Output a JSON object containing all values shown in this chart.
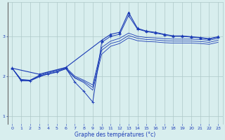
{
  "xlabel": "Graphe des températures (°c)",
  "bg_color": "#d8eeee",
  "line_color": "#1a3ab5",
  "grid_color": "#aec8c8",
  "xlim": [
    -0.5,
    23.5
  ],
  "ylim": [
    0.8,
    3.85
  ],
  "yticks": [
    1,
    2,
    3
  ],
  "xticks": [
    0,
    1,
    2,
    3,
    4,
    5,
    6,
    7,
    8,
    9,
    10,
    11,
    12,
    13,
    14,
    15,
    16,
    17,
    18,
    19,
    20,
    21,
    22,
    23
  ],
  "lines_plain": [
    [
      2.2,
      1.92,
      1.9,
      2.02,
      2.1,
      2.15,
      2.22,
      2.0,
      1.9,
      1.78,
      2.72,
      2.88,
      2.95,
      3.08,
      3.0,
      2.97,
      2.96,
      2.94,
      2.93,
      2.93,
      2.93,
      2.92,
      2.9,
      2.95
    ],
    [
      2.2,
      1.9,
      1.9,
      2.0,
      2.08,
      2.13,
      2.2,
      1.97,
      1.87,
      1.72,
      2.65,
      2.82,
      2.88,
      3.02,
      2.95,
      2.92,
      2.91,
      2.89,
      2.88,
      2.88,
      2.88,
      2.87,
      2.85,
      2.9
    ],
    [
      2.2,
      1.88,
      1.88,
      1.98,
      2.06,
      2.11,
      2.18,
      1.95,
      1.84,
      1.65,
      2.55,
      2.75,
      2.82,
      2.96,
      2.89,
      2.87,
      2.86,
      2.84,
      2.83,
      2.83,
      2.83,
      2.82,
      2.8,
      2.85
    ]
  ],
  "line_spike": {
    "x": [
      0,
      1,
      2,
      3,
      4,
      5,
      6,
      7,
      8,
      9,
      10,
      11,
      12,
      13,
      14,
      15,
      16,
      17,
      18,
      19,
      20,
      21,
      22,
      23
    ],
    "y": [
      2.2,
      1.9,
      1.88,
      2.0,
      2.05,
      2.1,
      2.2,
      1.85,
      1.62,
      1.35,
      2.85,
      3.0,
      3.05,
      3.52,
      3.18,
      3.12,
      3.08,
      3.04,
      3.0,
      3.0,
      2.98,
      2.96,
      2.93,
      2.98
    ]
  },
  "line_top": {
    "x": [
      0,
      3,
      6,
      10,
      11,
      12,
      13,
      14,
      15,
      16,
      17,
      18,
      19,
      20,
      21,
      22,
      23
    ],
    "y": [
      2.2,
      2.05,
      2.22,
      2.9,
      3.05,
      3.1,
      3.6,
      3.2,
      3.13,
      3.1,
      3.05,
      3.01,
      3.01,
      2.99,
      2.97,
      2.94,
      2.99
    ]
  }
}
